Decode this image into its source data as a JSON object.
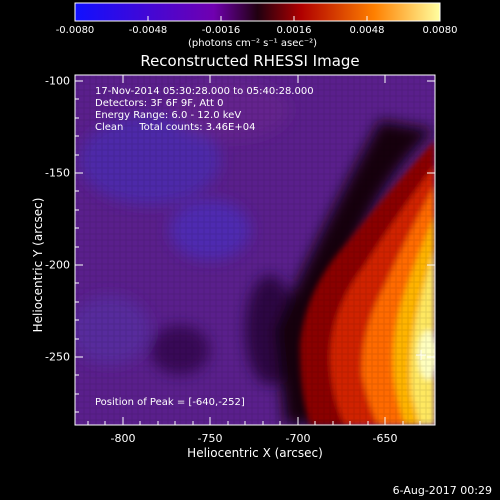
{
  "colorbar": {
    "ticks": [
      "-0.0080",
      "-0.0048",
      "-0.0016",
      "0.0016",
      "0.0048",
      "0.0080"
    ],
    "units": "(photons cm⁻² s⁻¹ asec⁻²)",
    "range": [
      -0.008,
      0.008
    ],
    "colors": [
      "#1010ff",
      "#6a00a8",
      "#2a0010",
      "#c00000",
      "#ff8a00",
      "#ffff90"
    ]
  },
  "plot": {
    "title": "Reconstructed RHESSI Image",
    "xlabel": "Heliocentric X (arcsec)",
    "ylabel": "Heliocentric Y (arcsec)",
    "xticks": [
      "-800",
      "-750",
      "-700",
      "-650"
    ],
    "yticks": [
      "-100",
      "-150",
      "-200",
      "-250"
    ],
    "xlim": [
      -832,
      -632
    ],
    "ylim": [
      -97,
      -287
    ]
  },
  "info": {
    "line1": "17-Nov-2014 05:30:28.000 to 05:40:28.000",
    "line2": "Detectors: 3F 6F 9F, Att 0",
    "line3": "Energy Range: 6.0 - 12.0 keV",
    "line4": "Clean     Total counts: 3.46E+04"
  },
  "peak_label": "Position of Peak = [-640,-252]",
  "footer_date": "6-Aug-2017 00:29"
}
